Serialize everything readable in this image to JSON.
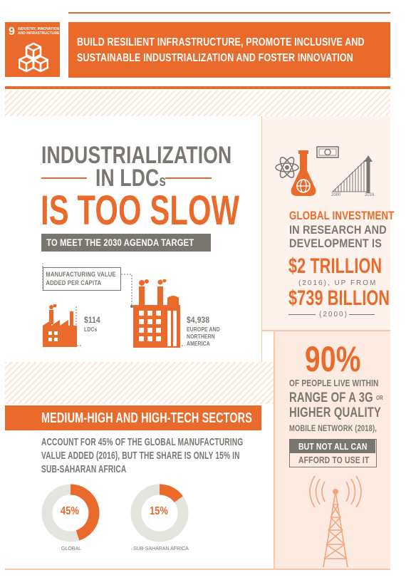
{
  "header": {
    "goal_number": "9",
    "goal_name_line1": "INDUSTRY, INNOVATION",
    "goal_name_line2": "AND INFRASTRUCTURE",
    "banner_line1": "BUILD RESILIENT INFRASTRUCTURE, PROMOTE INCLUSIVE AND",
    "banner_line2": "SUSTAINABLE INDUSTRIALIZATION AND FOSTER INNOVATION"
  },
  "ldc": {
    "title_line1": "INDUSTRIALIZATION",
    "title_line2": "IN LDC",
    "title_line2_suffix": "s",
    "title_line3": "IS TOO SLOW",
    "subtitle": "TO MEET THE 2030 AGENDA TARGET",
    "mva_label_line1": "MANUFACTURING VALUE",
    "mva_label_line2": "ADDED PER CAPITA",
    "ldc_value": "$114",
    "ldc_label": "LDCs",
    "europe_value": "$4,938",
    "europe_label_line1": "EUROPE AND",
    "europe_label_line2": "NORTHERN",
    "europe_label_line3": "AMERICA"
  },
  "research": {
    "year_start": "2000",
    "year_end": "2016",
    "line1": "GLOBAL INVESTMENT",
    "line2": "IN RESEARCH AND",
    "line3": "DEVELOPMENT IS",
    "big_value": "$2 TRILLION",
    "sub_line": "(2016), UP FROM",
    "big_value2": "$739 BILLION",
    "sub_line2": "(2000)"
  },
  "mobile": {
    "percent": "90%",
    "line1": "OF PEOPLE LIVE WITHIN",
    "line2_a": "RANGE OF A 3G",
    "line2_b": "OR",
    "line3": "HIGHER QUALITY",
    "line4": "MOBILE NETWORK (2018),",
    "box_line1": "BUT NOT ALL CAN",
    "box_line2": "AFFORD TO USE IT"
  },
  "hightech": {
    "banner": "MEDIUM-HIGH AND HIGH-TECH SECTORS",
    "text_line1": "ACCOUNT FOR 45% OF THE GLOBAL MANUFACTURING",
    "text_line2": "VALUE ADDED (2016), BUT THE SHARE IS ONLY 15% IN",
    "text_line3": "SUB-SAHARAN AFRICA",
    "donuts": [
      {
        "label": "GLOBAL",
        "value_text": "45%",
        "share": 0.45
      },
      {
        "label": "SUB-SAHARAN AFRICA",
        "value_text": "15%",
        "share": 0.15
      }
    ]
  },
  "colors": {
    "orange": "#ea6a2c",
    "grey": "#7a7670",
    "light_grey": "#e6e4df"
  }
}
